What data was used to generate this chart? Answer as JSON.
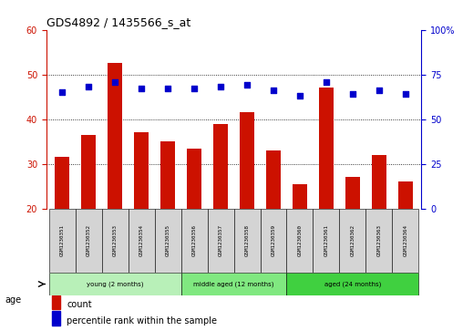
{
  "title": "GDS4892 / 1435566_s_at",
  "samples": [
    "GSM1230351",
    "GSM1230352",
    "GSM1230353",
    "GSM1230354",
    "GSM1230355",
    "GSM1230356",
    "GSM1230357",
    "GSM1230358",
    "GSM1230359",
    "GSM1230360",
    "GSM1230361",
    "GSM1230362",
    "GSM1230363",
    "GSM1230364"
  ],
  "bar_values": [
    31.5,
    36.5,
    52.5,
    37.0,
    35.0,
    33.5,
    39.0,
    41.5,
    33.0,
    25.5,
    47.0,
    27.0,
    32.0,
    26.0
  ],
  "dot_values_percentile": [
    65,
    68,
    71,
    67,
    67,
    67,
    68,
    69,
    66,
    63,
    71,
    64,
    66,
    64
  ],
  "bar_color": "#cc1100",
  "dot_color": "#0000cc",
  "ylim_left": [
    20,
    60
  ],
  "ylim_right": [
    0,
    100
  ],
  "yticks_left": [
    20,
    30,
    40,
    50,
    60
  ],
  "yticks_right": [
    0,
    25,
    50,
    75,
    100
  ],
  "group_defs": [
    {
      "start": 0,
      "end": 4,
      "label": "young (2 months)",
      "color": "#b8f0b8"
    },
    {
      "start": 5,
      "end": 8,
      "label": "middle aged (12 months)",
      "color": "#80e880"
    },
    {
      "start": 9,
      "end": 13,
      "label": "aged (24 months)",
      "color": "#40d040"
    }
  ],
  "age_label": "age",
  "legend_count_label": "count",
  "legend_percentile_label": "percentile rank within the sample",
  "grid_color": "#000000",
  "background_color": "#ffffff",
  "sample_cell_color": "#d4d4d4"
}
